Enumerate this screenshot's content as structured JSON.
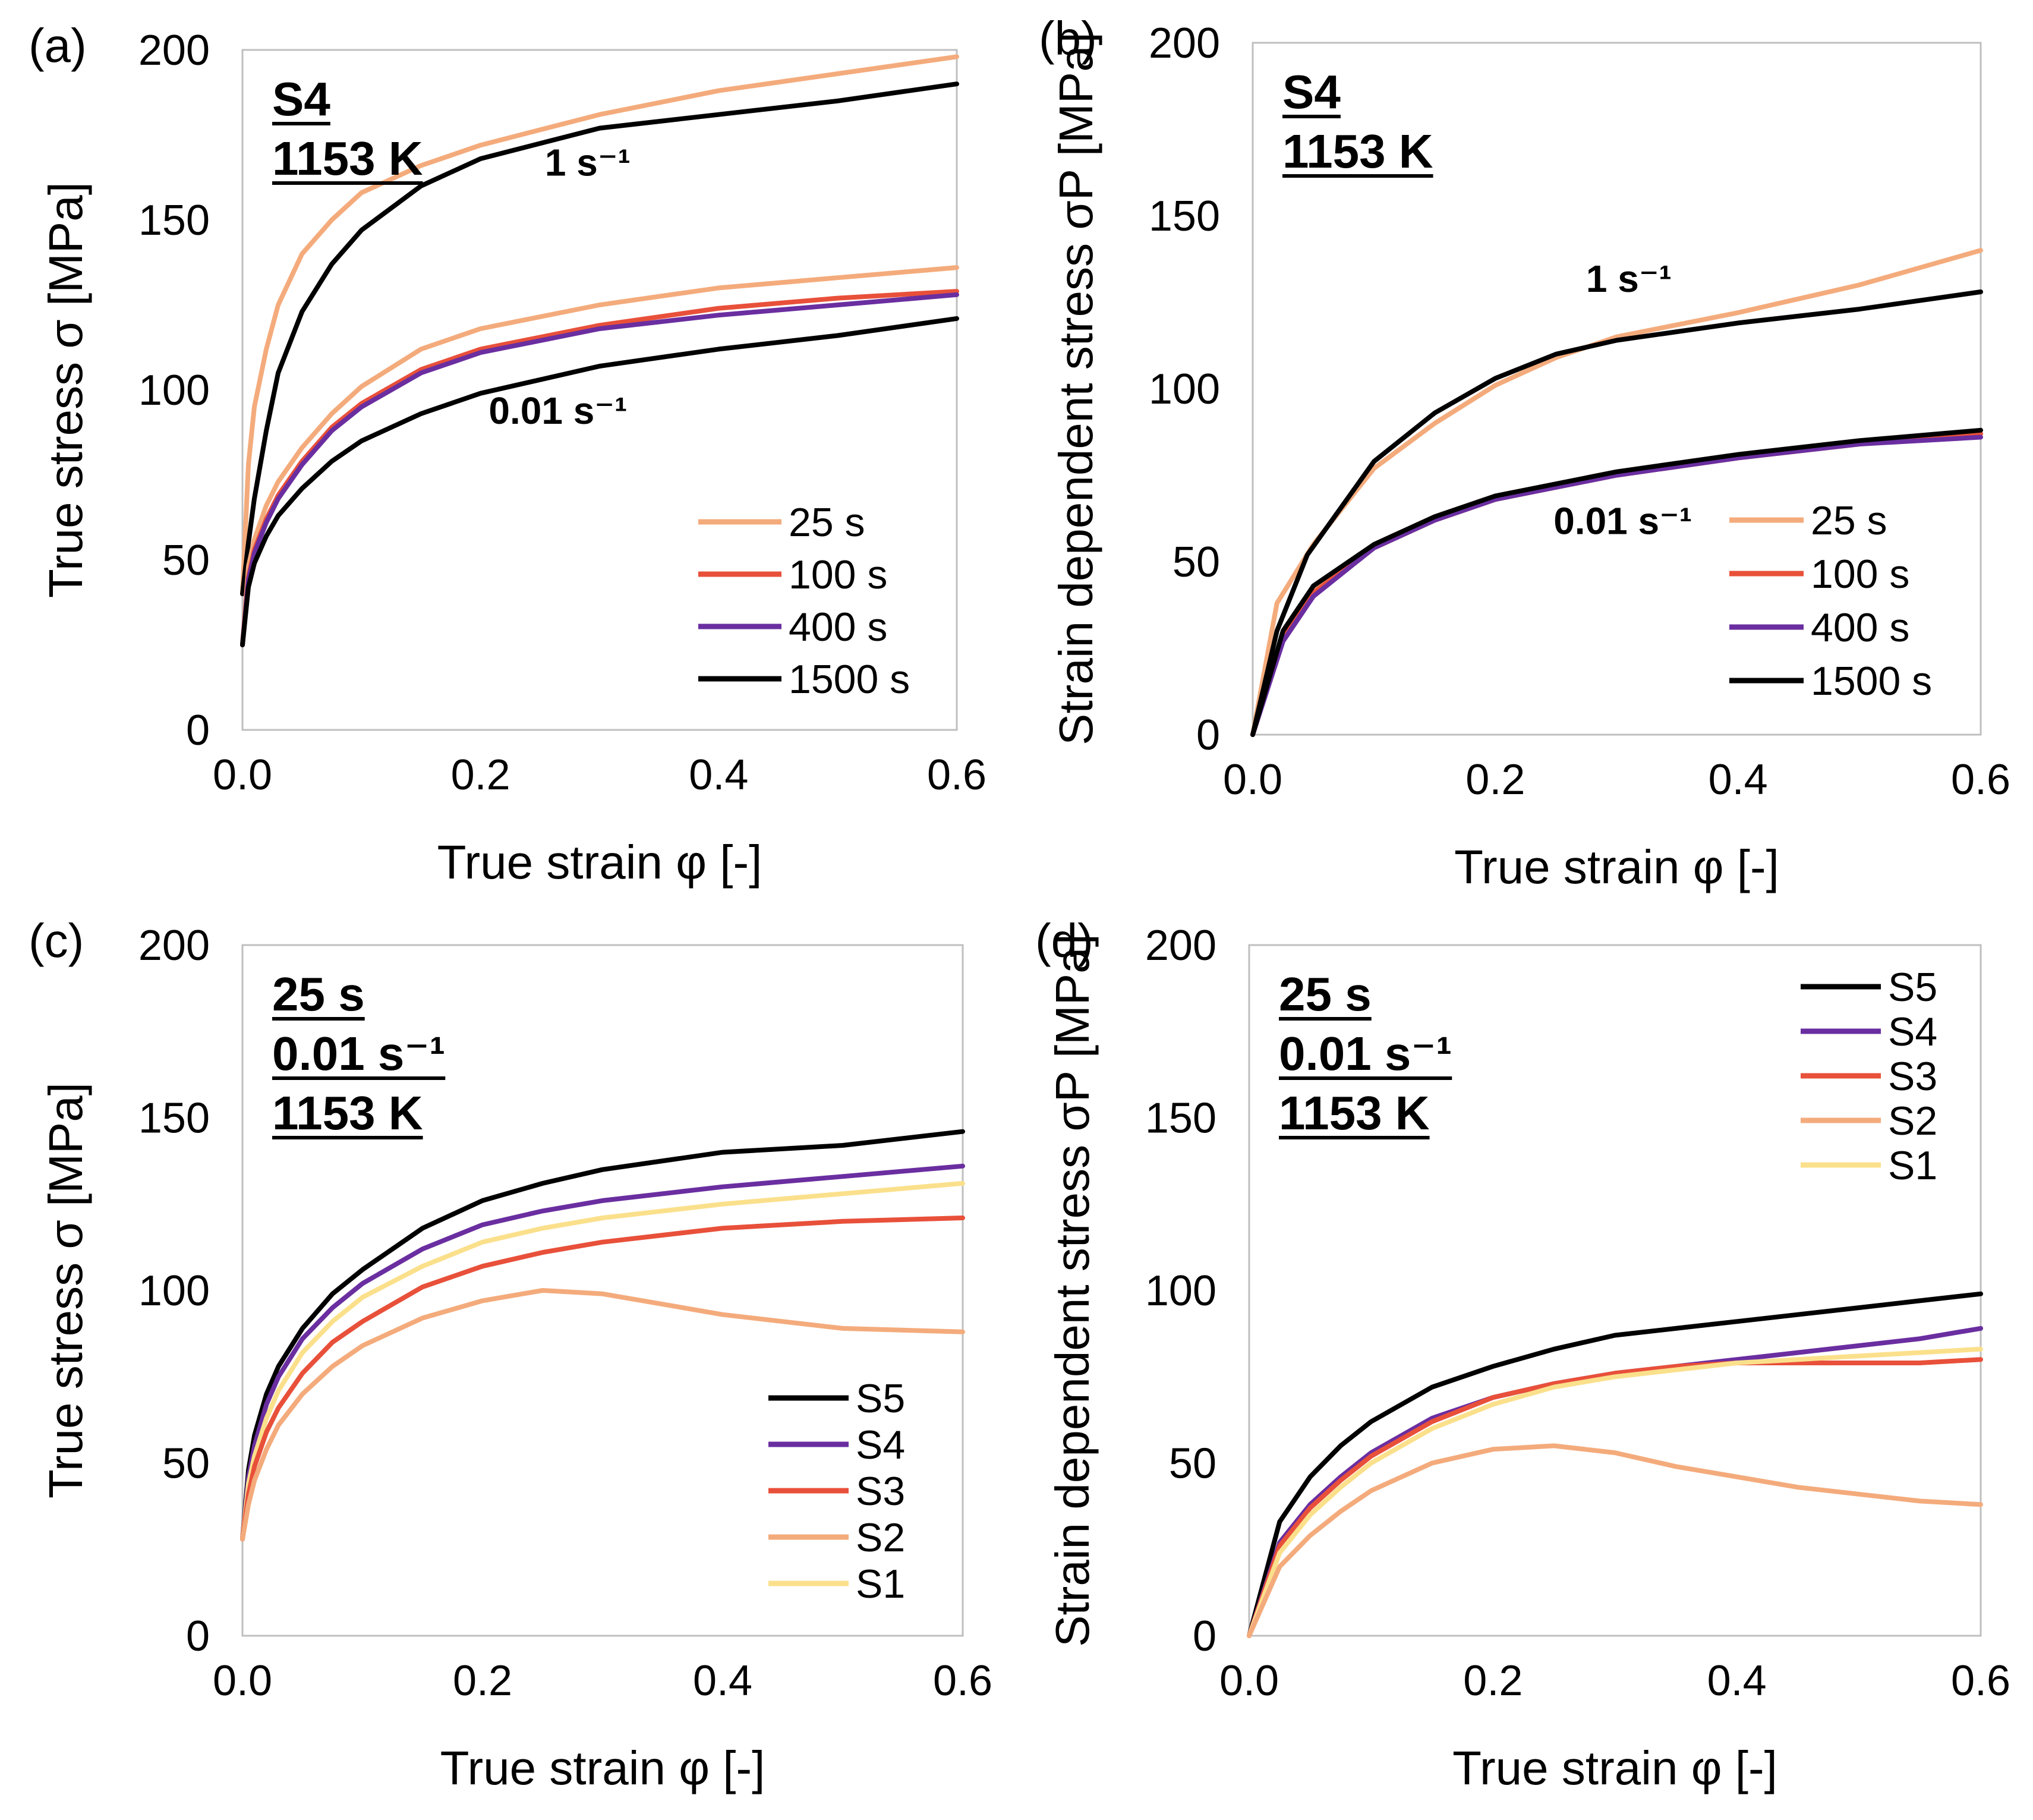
{
  "figure_title": "",
  "chart_data": [
    {
      "id": "a",
      "type": "line",
      "panel_label": "(a)",
      "xlabel": "True strain φ [-]",
      "ylabel": "True stress σ [MPa]",
      "xlim": [
        0,
        0.6
      ],
      "ylim": [
        0,
        200
      ],
      "xticks": [
        "0.0",
        "0.2",
        "0.4",
        "0.6"
      ],
      "yticks": [
        "0",
        "50",
        "100",
        "150",
        "200"
      ],
      "annotation": [
        "S4",
        "1153 K"
      ],
      "curve_labels": [
        {
          "text": "1 s⁻¹",
          "x": 0.29,
          "y": 163
        },
        {
          "text": "0.01 s⁻¹",
          "x": 0.265,
          "y": 90
        }
      ],
      "legend": {
        "position": "bottom-right",
        "entries": [
          "25 s",
          "100 s",
          "400 s",
          "1500 s"
        ]
      },
      "series": [
        {
          "name": "25 s",
          "rate": "1 s⁻¹",
          "color": "#f4ab7c",
          "x": [
            0,
            0.005,
            0.01,
            0.02,
            0.03,
            0.05,
            0.075,
            0.1,
            0.15,
            0.2,
            0.3,
            0.4,
            0.5,
            0.6
          ],
          "y": [
            40,
            78,
            95,
            112,
            125,
            140,
            150,
            158,
            166,
            172,
            181,
            188,
            193,
            198
          ]
        },
        {
          "name": "1500 s",
          "rate": "1 s⁻¹",
          "color": "#000000",
          "x": [
            0,
            0.005,
            0.01,
            0.02,
            0.03,
            0.05,
            0.075,
            0.1,
            0.15,
            0.2,
            0.3,
            0.4,
            0.5,
            0.6
          ],
          "y": [
            40,
            55,
            68,
            88,
            105,
            123,
            137,
            147,
            160,
            168,
            177,
            181,
            185,
            190
          ]
        },
        {
          "name": "25 s",
          "rate": "0.01 s⁻¹",
          "color": "#f4ab7c",
          "x": [
            0,
            0.005,
            0.01,
            0.02,
            0.03,
            0.05,
            0.075,
            0.1,
            0.15,
            0.2,
            0.3,
            0.4,
            0.5,
            0.6
          ],
          "y": [
            25,
            48,
            56,
            66,
            73,
            83,
            93,
            101,
            112,
            118,
            125,
            130,
            133,
            136
          ]
        },
        {
          "name": "100 s",
          "rate": "0.01 s⁻¹",
          "color": "#e8503a",
          "x": [
            0,
            0.005,
            0.01,
            0.02,
            0.03,
            0.05,
            0.075,
            0.1,
            0.15,
            0.2,
            0.3,
            0.4,
            0.5,
            0.6
          ],
          "y": [
            25,
            45,
            53,
            62,
            69,
            79,
            89,
            96,
            106,
            112,
            119,
            124,
            127,
            129
          ]
        },
        {
          "name": "400 s",
          "rate": "0.01 s⁻¹",
          "color": "#6a2ea0",
          "x": [
            0,
            0.005,
            0.01,
            0.02,
            0.03,
            0.05,
            0.075,
            0.1,
            0.15,
            0.2,
            0.3,
            0.4,
            0.5,
            0.6
          ],
          "y": [
            25,
            44,
            52,
            61,
            68,
            78,
            88,
            95,
            105,
            111,
            118,
            122,
            125,
            128
          ]
        },
        {
          "name": "1500 s",
          "rate": "0.01 s⁻¹",
          "color": "#000000",
          "x": [
            0,
            0.005,
            0.01,
            0.02,
            0.03,
            0.05,
            0.075,
            0.1,
            0.15,
            0.2,
            0.3,
            0.4,
            0.5,
            0.6
          ],
          "y": [
            25,
            42,
            49,
            57,
            63,
            71,
            79,
            85,
            93,
            99,
            107,
            112,
            116,
            121
          ]
        }
      ]
    },
    {
      "id": "b",
      "type": "line",
      "panel_label": "(b)",
      "xlabel": "True strain φ [-]",
      "ylabel": "Strain dependent stress σP [MPa]",
      "xlim": [
        0,
        0.6
      ],
      "ylim": [
        0,
        200
      ],
      "xticks": [
        "0.0",
        "0.2",
        "0.4",
        "0.6"
      ],
      "yticks": [
        "0",
        "50",
        "100",
        "150",
        "200"
      ],
      "annotation": [
        "S4",
        "1153 K"
      ],
      "curve_labels": [
        {
          "text": "1 s⁻¹",
          "x": 0.31,
          "y": 128
        },
        {
          "text": "0.01 s⁻¹",
          "x": 0.305,
          "y": 58
        }
      ],
      "legend": {
        "position": "bottom-right",
        "entries": [
          "25 s",
          "100 s",
          "400 s",
          "1500 s"
        ]
      },
      "series": [
        {
          "name": "25 s",
          "rate": "1 s⁻¹",
          "color": "#f4ab7c",
          "x": [
            0,
            0.02,
            0.05,
            0.1,
            0.15,
            0.2,
            0.25,
            0.3,
            0.4,
            0.5,
            0.6
          ],
          "y": [
            0,
            38,
            55,
            77,
            90,
            101,
            109,
            115,
            122,
            130,
            140
          ]
        },
        {
          "name": "1500 s",
          "rate": "1 s⁻¹",
          "color": "#000000",
          "x": [
            0,
            0.02,
            0.045,
            0.1,
            0.15,
            0.2,
            0.25,
            0.3,
            0.4,
            0.5,
            0.6
          ],
          "y": [
            0,
            30,
            52,
            79,
            93,
            103,
            110,
            114,
            119,
            123,
            128
          ]
        },
        {
          "name": "25 s",
          "rate": "0.01 s⁻¹",
          "color": "#f4ab7c",
          "x": [
            0,
            0.025,
            0.05,
            0.1,
            0.15,
            0.2,
            0.3,
            0.4,
            0.5,
            0.6
          ],
          "y": [
            0,
            28,
            42,
            55,
            63,
            69,
            76,
            80,
            84,
            87
          ]
        },
        {
          "name": "100 s",
          "rate": "0.01 s⁻¹",
          "color": "#e8503a",
          "x": [
            0,
            0.025,
            0.05,
            0.1,
            0.15,
            0.2,
            0.3,
            0.4,
            0.5,
            0.6
          ],
          "y": [
            0,
            28,
            41,
            54,
            62,
            68,
            75,
            80,
            84,
            87
          ]
        },
        {
          "name": "400 s",
          "rate": "0.01 s⁻¹",
          "color": "#6a2ea0",
          "x": [
            0,
            0.025,
            0.05,
            0.1,
            0.15,
            0.2,
            0.3,
            0.4,
            0.5,
            0.6
          ],
          "y": [
            0,
            27,
            40,
            54,
            62,
            68,
            75,
            80,
            84,
            86
          ]
        },
        {
          "name": "1500 s",
          "rate": "0.01 s⁻¹",
          "color": "#000000",
          "x": [
            0,
            0.025,
            0.05,
            0.1,
            0.15,
            0.2,
            0.3,
            0.4,
            0.5,
            0.6
          ],
          "y": [
            0,
            30,
            43,
            55,
            63,
            69,
            76,
            81,
            85,
            88
          ]
        }
      ]
    },
    {
      "id": "c",
      "type": "line",
      "panel_label": "(c)",
      "xlabel": "True strain φ [-]",
      "ylabel": "True stress σ [MPa]",
      "xlim": [
        0,
        0.6
      ],
      "ylim": [
        0,
        200
      ],
      "xticks": [
        "0.0",
        "0.2",
        "0.4",
        "0.6"
      ],
      "yticks": [
        "0",
        "50",
        "100",
        "150",
        "200"
      ],
      "annotation": [
        "25 s",
        "0.01 s⁻¹",
        "1153 K"
      ],
      "curve_labels": [],
      "legend": {
        "position": "bottom-right",
        "entries": [
          "S5",
          "S4",
          "S3",
          "S2",
          "S1"
        ]
      },
      "series": [
        {
          "name": "S5",
          "color": "#000000",
          "x": [
            0,
            0.005,
            0.01,
            0.02,
            0.03,
            0.05,
            0.075,
            0.1,
            0.15,
            0.2,
            0.25,
            0.3,
            0.4,
            0.5,
            0.6
          ],
          "y": [
            28,
            48,
            58,
            70,
            78,
            89,
            99,
            106,
            118,
            126,
            131,
            135,
            140,
            142,
            146
          ]
        },
        {
          "name": "S4",
          "color": "#6a2ea0",
          "x": [
            0,
            0.005,
            0.01,
            0.02,
            0.03,
            0.05,
            0.075,
            0.1,
            0.15,
            0.2,
            0.25,
            0.3,
            0.4,
            0.5,
            0.6
          ],
          "y": [
            28,
            46,
            55,
            67,
            75,
            86,
            95,
            102,
            112,
            119,
            123,
            126,
            130,
            133,
            136
          ]
        },
        {
          "name": "S1",
          "color": "#fbe08c",
          "x": [
            0,
            0.005,
            0.01,
            0.02,
            0.03,
            0.05,
            0.075,
            0.1,
            0.15,
            0.2,
            0.25,
            0.3,
            0.4,
            0.5,
            0.6
          ],
          "y": [
            28,
            44,
            52,
            63,
            71,
            82,
            91,
            98,
            107,
            114,
            118,
            121,
            125,
            128,
            131
          ]
        },
        {
          "name": "S3",
          "color": "#e8503a",
          "x": [
            0,
            0.005,
            0.01,
            0.02,
            0.03,
            0.05,
            0.075,
            0.1,
            0.15,
            0.2,
            0.25,
            0.3,
            0.4,
            0.5,
            0.6
          ],
          "y": [
            28,
            41,
            49,
            59,
            66,
            76,
            85,
            91,
            101,
            107,
            111,
            114,
            118,
            120,
            121
          ]
        },
        {
          "name": "S2",
          "color": "#f4ab7c",
          "x": [
            0,
            0.005,
            0.01,
            0.02,
            0.03,
            0.05,
            0.075,
            0.1,
            0.15,
            0.2,
            0.25,
            0.3,
            0.35,
            0.4,
            0.5,
            0.6
          ],
          "y": [
            28,
            38,
            45,
            54,
            61,
            70,
            78,
            84,
            92,
            97,
            100,
            99,
            96,
            93,
            89,
            88
          ]
        }
      ]
    },
    {
      "id": "d",
      "type": "line",
      "panel_label": "(d)",
      "xlabel": "True strain φ [-]",
      "ylabel": "Strain dependent stress σP [MPa]",
      "xlim": [
        0,
        0.6
      ],
      "ylim": [
        0,
        200
      ],
      "xticks": [
        "0.0",
        "0.2",
        "0.4",
        "0.6"
      ],
      "yticks": [
        "0",
        "50",
        "100",
        "150",
        "200"
      ],
      "annotation": [
        "25 s",
        "0.01 s⁻¹",
        "1153 K"
      ],
      "curve_labels": [],
      "legend": {
        "position": "top-right",
        "entries": [
          "S5",
          "S4",
          "S3",
          "S2",
          "S1"
        ]
      },
      "series": [
        {
          "name": "S5",
          "color": "#000000",
          "x": [
            0,
            0.025,
            0.05,
            0.075,
            0.1,
            0.15,
            0.2,
            0.25,
            0.3,
            0.35,
            0.4,
            0.45,
            0.5,
            0.55,
            0.6
          ],
          "y": [
            0,
            33,
            46,
            55,
            62,
            72,
            78,
            83,
            87,
            89,
            91,
            93,
            95,
            97,
            99
          ]
        },
        {
          "name": "S4",
          "color": "#6a2ea0",
          "x": [
            0,
            0.025,
            0.05,
            0.075,
            0.1,
            0.15,
            0.2,
            0.25,
            0.3,
            0.35,
            0.4,
            0.45,
            0.5,
            0.55,
            0.6
          ],
          "y": [
            0,
            27,
            38,
            46,
            53,
            63,
            69,
            73,
            76,
            78,
            80,
            82,
            84,
            86,
            89
          ]
        },
        {
          "name": "S3",
          "color": "#e8503a",
          "x": [
            0,
            0.025,
            0.05,
            0.075,
            0.1,
            0.15,
            0.2,
            0.25,
            0.3,
            0.35,
            0.4,
            0.45,
            0.5,
            0.55,
            0.6
          ],
          "y": [
            0,
            26,
            37,
            45,
            52,
            62,
            69,
            73,
            76,
            78,
            79,
            79,
            79,
            79,
            80
          ]
        },
        {
          "name": "S1",
          "color": "#fbe08c",
          "x": [
            0,
            0.025,
            0.05,
            0.075,
            0.1,
            0.15,
            0.2,
            0.25,
            0.3,
            0.35,
            0.4,
            0.45,
            0.5,
            0.55,
            0.6
          ],
          "y": [
            0,
            24,
            35,
            43,
            50,
            60,
            67,
            72,
            75,
            77,
            79,
            80,
            81,
            82,
            83
          ]
        },
        {
          "name": "S2",
          "color": "#f4ab7c",
          "x": [
            0,
            0.025,
            0.05,
            0.075,
            0.1,
            0.15,
            0.2,
            0.25,
            0.3,
            0.35,
            0.4,
            0.45,
            0.5,
            0.55,
            0.6
          ],
          "y": [
            0,
            20,
            29,
            36,
            42,
            50,
            54,
            55,
            53,
            49,
            46,
            43,
            41,
            39,
            38
          ]
        }
      ]
    }
  ]
}
